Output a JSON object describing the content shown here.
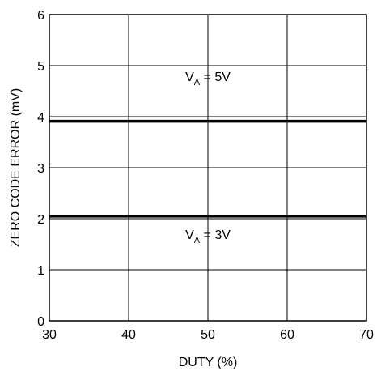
{
  "chart_data": {
    "type": "line",
    "title": "",
    "xlabel": "DUTY (%)",
    "ylabel": "ZERO CODE ERROR (mV)",
    "xlim": [
      30,
      70
    ],
    "ylim": [
      0,
      6
    ],
    "xticks": [
      30,
      40,
      50,
      60,
      70
    ],
    "yticks": [
      0,
      1,
      2,
      3,
      4,
      5,
      6
    ],
    "grid": true,
    "series": [
      {
        "name": "VA = 5V",
        "x": [
          30,
          40,
          50,
          60,
          70
        ],
        "y": [
          3.91,
          3.91,
          3.91,
          3.91,
          3.91
        ]
      },
      {
        "name": "VA = 3V",
        "x": [
          30,
          40,
          50,
          60,
          70
        ],
        "y": [
          2.05,
          2.05,
          2.05,
          2.05,
          2.05
        ]
      }
    ],
    "annotations": [
      {
        "base": "V",
        "sub": "A",
        "rest": " = 5V",
        "x": 50,
        "y": 4.7
      },
      {
        "base": "V",
        "sub": "A",
        "rest": " = 3V",
        "x": 50,
        "y": 1.6
      }
    ]
  }
}
